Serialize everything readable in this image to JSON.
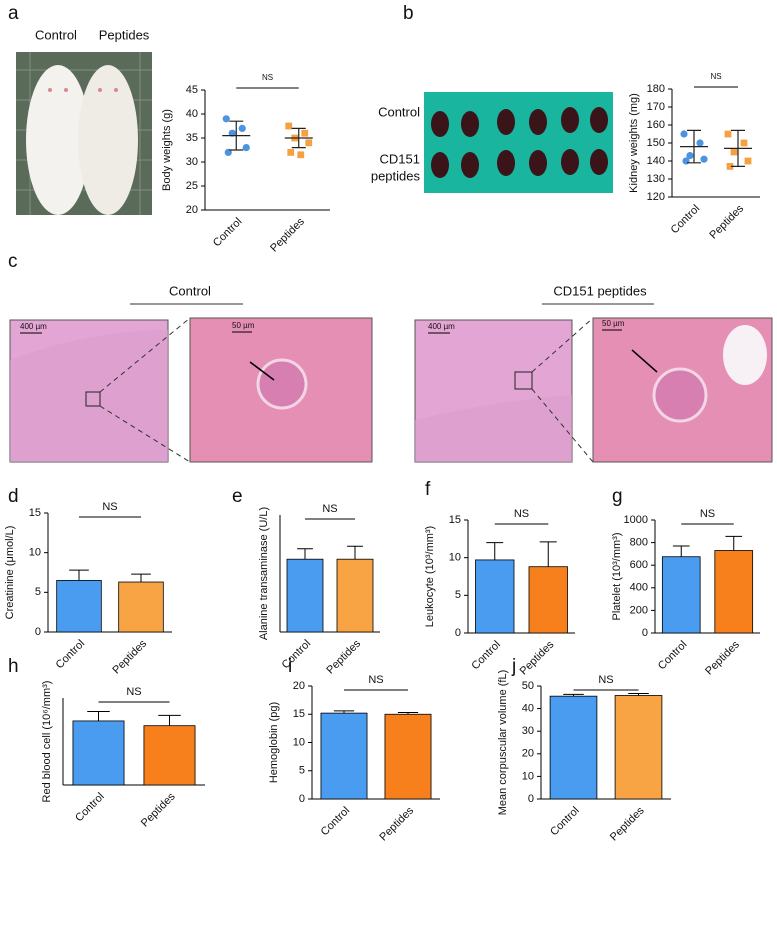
{
  "photos": {
    "panel": "a",
    "mice_labels": [
      "Control",
      "Peptides"
    ],
    "panel_b": "b",
    "kidney_labels": [
      "Control",
      "CD151",
      "peptides"
    ]
  },
  "histology": {
    "panel": "c",
    "groups": [
      {
        "title": "Control",
        "scale_low": "400 µm",
        "scale_high": "50 µm"
      },
      {
        "title": "CD151 peptides",
        "scale_low": "400 µm",
        "scale_high": "50 µm"
      }
    ]
  },
  "chart_data": [
    {
      "type": "dot",
      "ylabel": "Body weights (g)",
      "categories": [
        "Control",
        "Peptides"
      ],
      "annotation": "NS",
      "points": [
        [
          39,
          37,
          36,
          33,
          32
        ],
        [
          37.5,
          36,
          35,
          34,
          32,
          31.5
        ]
      ],
      "means": [
        35.5,
        35
      ],
      "sd": [
        3,
        2
      ],
      "colors": [
        "#4d94e0",
        "#f5a142"
      ],
      "ylim": [
        20,
        45
      ],
      "yticks": [
        20,
        25,
        30,
        35,
        40,
        45
      ]
    },
    {
      "type": "dot",
      "ylabel": "Kidney weights (mg)",
      "categories": [
        "Control",
        "Peptides"
      ],
      "annotation": "NS",
      "points": [
        [
          155,
          150,
          143,
          141,
          140
        ],
        [
          155,
          150,
          145,
          140,
          137
        ]
      ],
      "means": [
        148,
        147
      ],
      "sd": [
        9,
        10
      ],
      "colors": [
        "#4d94e0",
        "#f5a142"
      ],
      "ylim": [
        120,
        180
      ],
      "yticks": [
        120,
        130,
        140,
        150,
        160,
        170,
        180
      ]
    },
    {
      "type": "bar",
      "panel": "d",
      "ylabel": "Creatinine (μmol/L)",
      "categories": [
        "Control",
        "Peptides"
      ],
      "annotation": "NS",
      "values": [
        6.5,
        6.3
      ],
      "errors": [
        1.3,
        1.0
      ],
      "colors": [
        "#4a9cf0",
        "#f8a444"
      ],
      "ylim": [
        0,
        15
      ],
      "yticks": [
        0,
        5,
        10,
        15
      ]
    },
    {
      "type": "bar",
      "panel": "e",
      "ylabel": "Alanine transaminase (U/L)",
      "categories": [
        "Control",
        "Peptides"
      ],
      "annotation": "NS",
      "values": [
        56,
        56
      ],
      "errors": [
        8,
        10
      ],
      "colors": [
        "#4a9cf0",
        "#f8a444"
      ],
      "ylim": [
        0,
        90
      ]
    },
    {
      "type": "bar",
      "panel": "f",
      "ylabel": "Leukocyte (10³/mm³)",
      "categories": [
        "Control",
        "Peptides"
      ],
      "annotation": "NS",
      "values": [
        9.7,
        8.8
      ],
      "errors": [
        2.3,
        3.3
      ],
      "colors": [
        "#4a9cf0",
        "#f77f1c"
      ],
      "ylim": [
        0,
        15
      ],
      "yticks": [
        0,
        5,
        10,
        15
      ]
    },
    {
      "type": "bar",
      "panel": "g",
      "ylabel": "Platelet (10³/mm³)",
      "categories": [
        "Control",
        "Peptides"
      ],
      "annotation": "NS",
      "values": [
        675,
        730
      ],
      "errors": [
        95,
        125
      ],
      "colors": [
        "#4a9cf0",
        "#f77f1c"
      ],
      "ylim": [
        0,
        1000
      ],
      "yticks": [
        0,
        200,
        400,
        600,
        800,
        1000
      ]
    },
    {
      "type": "bar",
      "panel": "h",
      "ylabel": "Red blood cell (10⁶/mm³)",
      "categories": [
        "Control",
        "Peptides"
      ],
      "annotation": "NS",
      "values": [
        8.1,
        7.5
      ],
      "errors": [
        1.2,
        1.3
      ],
      "colors": [
        "#4a9cf0",
        "#f77f1c"
      ],
      "ylim": [
        0,
        11
      ]
    },
    {
      "type": "bar",
      "panel": "i",
      "ylabel": "Hemoglobin (pg)",
      "categories": [
        "Control",
        "Peptides"
      ],
      "annotation": "NS",
      "values": [
        15.2,
        15.0
      ],
      "errors": [
        0.4,
        0.3
      ],
      "colors": [
        "#4a9cf0",
        "#f77f1c"
      ],
      "ylim": [
        0,
        20
      ],
      "yticks": [
        0,
        5,
        10,
        15,
        20
      ]
    },
    {
      "type": "bar",
      "panel": "j",
      "ylabel": "Mean corpuscular volume (fL)",
      "categories": [
        "Control",
        "Peptides"
      ],
      "annotation": "NS",
      "values": [
        45.5,
        45.8
      ],
      "errors": [
        0.8,
        0.9
      ],
      "colors": [
        "#4a9cf0",
        "#f8a444"
      ],
      "ylim": [
        0,
        50
      ],
      "yticks": [
        0,
        10,
        20,
        30,
        40,
        50
      ]
    }
  ]
}
